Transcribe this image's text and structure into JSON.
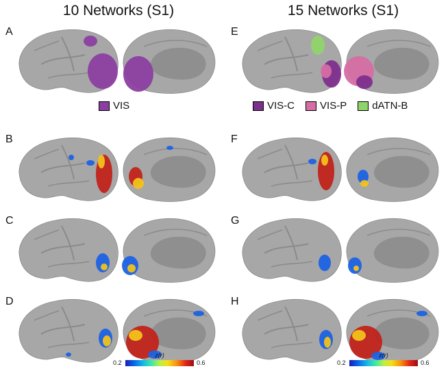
{
  "titles": {
    "left": "10 Networks (S1)",
    "right": "15 Networks (S1)"
  },
  "panel_labels": {
    "A": "A",
    "B": "B",
    "C": "C",
    "D": "D",
    "E": "E",
    "F": "F",
    "G": "G",
    "H": "H"
  },
  "legend_left": [
    {
      "label": "VIS",
      "color": "#8b3fa0"
    }
  ],
  "legend_right": [
    {
      "label": "VIS-C",
      "color": "#7d2f8c"
    },
    {
      "label": "VIS-P",
      "color": "#d56ea4"
    },
    {
      "label": "dATN-B",
      "color": "#8fd46a"
    }
  ],
  "colorbar": {
    "label": "z(r)",
    "min": "0.2",
    "max": "0.6"
  },
  "colors": {
    "brain": "#a7a7a7",
    "brain_dark": "#8b8b8b",
    "medial_wall": "#8f8f8f",
    "hot": "#c0231a",
    "mid": "#f2c21b",
    "cold": "#1c62e3"
  }
}
